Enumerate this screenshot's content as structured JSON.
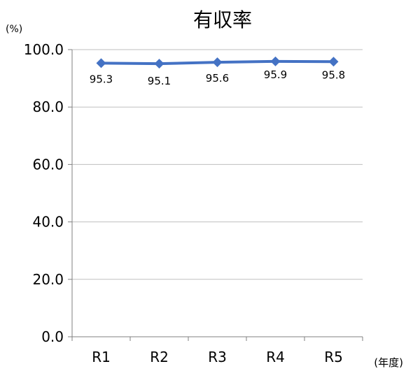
{
  "chart_data": {
    "type": "line",
    "title": "有収率",
    "ylabel": "(%)",
    "xlabel": "(年度)",
    "categories": [
      "R1",
      "R2",
      "R3",
      "R4",
      "R5"
    ],
    "series": [
      {
        "values": [
          95.3,
          95.1,
          95.6,
          95.9,
          95.8
        ],
        "color": "#4472C4",
        "marker": "diamond"
      }
    ],
    "data_labels": [
      "95.3",
      "95.1",
      "95.6",
      "95.9",
      "95.8"
    ],
    "ylim": [
      0,
      100
    ],
    "yticks": [
      0,
      20,
      40,
      60,
      80,
      100
    ],
    "ytick_labels": [
      "0.0",
      "20.0",
      "40.0",
      "60.0",
      "80.0",
      "100.0"
    ],
    "grid": true,
    "legend": "none"
  }
}
